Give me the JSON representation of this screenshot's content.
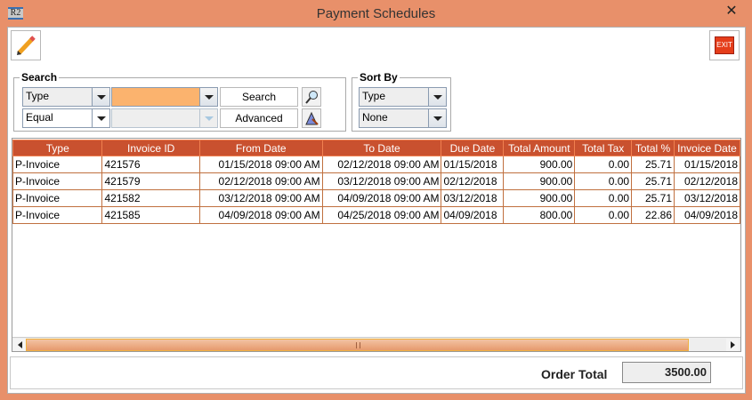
{
  "window": {
    "title": "Payment Schedules",
    "app_icon_text": "R2",
    "close_label": "✕"
  },
  "toolbar": {
    "edit_icon": "pencil-icon",
    "exit_label": "EXIT"
  },
  "search": {
    "legend": "Search",
    "field_select": "Type",
    "value_select": "",
    "operator_select": "Equal",
    "second_value_select": "",
    "search_button": "Search",
    "advanced_button": "Advanced"
  },
  "sort": {
    "legend": "Sort By",
    "primary": "Type",
    "secondary": "None"
  },
  "table": {
    "columns": [
      "Type",
      "Invoice ID",
      "From Date",
      "To Date",
      "Due Date",
      "Total Amount",
      "Total Tax",
      "Total %",
      "Invoice Date"
    ],
    "rows": [
      [
        "P-Invoice",
        "421576",
        "01/15/2018 09:00 AM",
        "02/12/2018 09:00 AM",
        "01/15/2018",
        "900.00",
        "0.00",
        "25.71",
        "01/15/2018"
      ],
      [
        "P-Invoice",
        "421579",
        "02/12/2018 09:00 AM",
        "03/12/2018 09:00 AM",
        "02/12/2018",
        "900.00",
        "0.00",
        "25.71",
        "02/12/2018"
      ],
      [
        "P-Invoice",
        "421582",
        "03/12/2018 09:00 AM",
        "04/09/2018 09:00 AM",
        "03/12/2018",
        "900.00",
        "0.00",
        "25.71",
        "03/12/2018"
      ],
      [
        "P-Invoice",
        "421585",
        "04/09/2018 09:00 AM",
        "04/25/2018 09:00 AM",
        "04/09/2018",
        "800.00",
        "0.00",
        "22.86",
        "04/09/2018"
      ]
    ]
  },
  "footer": {
    "order_total_label": "Order Total",
    "order_total_value": "3500.00"
  },
  "colors": {
    "titlebar": "#E8906A",
    "header": "#C9512F",
    "highlight": "#FBB36E"
  }
}
